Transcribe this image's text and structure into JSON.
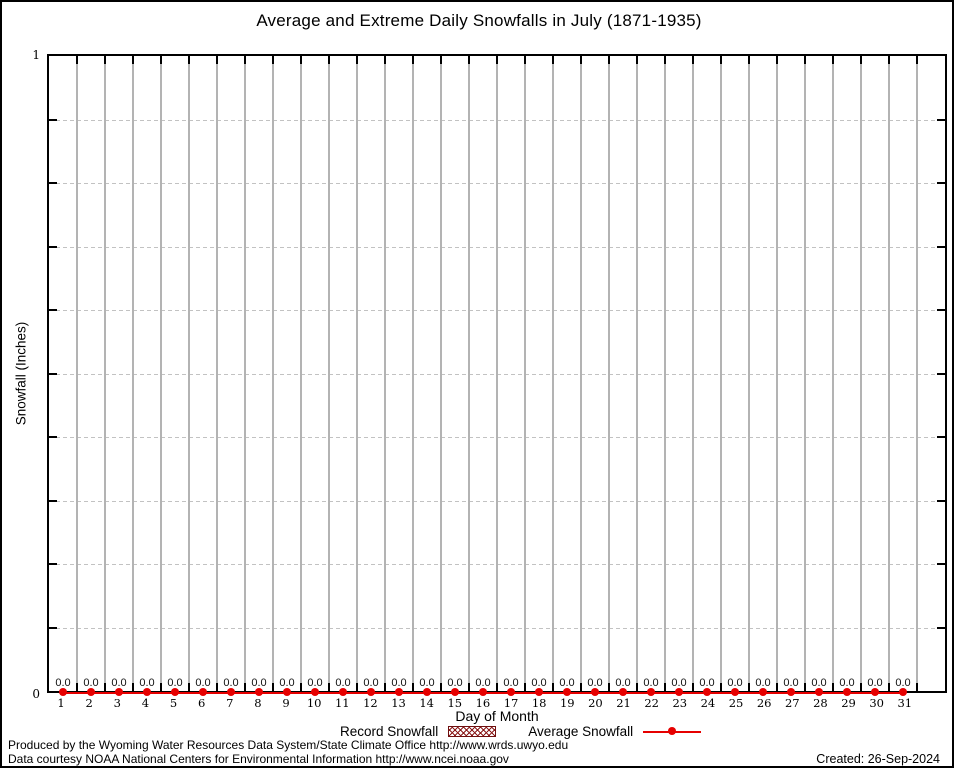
{
  "title": "Average and Extreme Daily Snowfalls in July (1871-1935)",
  "y_axis": {
    "label": "Snowfall (Inches)",
    "max_label": "1",
    "min_label": "0"
  },
  "x_axis": {
    "label": "Day of Month"
  },
  "legend": {
    "record_label": "Record Snowfall",
    "average_label": "Average Snowfall",
    "record_swatch_color": "#8b1a1a",
    "average_color": "#e60000"
  },
  "footer": {
    "line1": "Produced by the Wyoming Water Resources Data System/State Climate Office http://www.wrds.uwyo.edu",
    "line2": "Data courtesy NOAA National Centers for Environmental Information http://www.ncei.noaa.gov",
    "created": "Created: 26-Sep-2024"
  },
  "colors": {
    "series_red": "#e60000",
    "record_dark_red": "#8b1a1a",
    "vgrid_gray": "#b3b3b3",
    "hgrid_gray": "#c2c2c2",
    "border_black": "#000000"
  },
  "chart_data": {
    "type": "line",
    "title": "Average and Extreme Daily Snowfalls in July (1871-1935)",
    "xlabel": "Day of Month",
    "ylabel": "Snowfall (Inches)",
    "x": [
      1,
      2,
      3,
      4,
      5,
      6,
      7,
      8,
      9,
      10,
      11,
      12,
      13,
      14,
      15,
      16,
      17,
      18,
      19,
      20,
      21,
      22,
      23,
      24,
      25,
      26,
      27,
      28,
      29,
      30,
      31
    ],
    "series": [
      {
        "name": "Record Snowfall",
        "style": "hatched-box",
        "values": [
          0.0,
          0.0,
          0.0,
          0.0,
          0.0,
          0.0,
          0.0,
          0.0,
          0.0,
          0.0,
          0.0,
          0.0,
          0.0,
          0.0,
          0.0,
          0.0,
          0.0,
          0.0,
          0.0,
          0.0,
          0.0,
          0.0,
          0.0,
          0.0,
          0.0,
          0.0,
          0.0,
          0.0,
          0.0,
          0.0,
          0.0
        ]
      },
      {
        "name": "Average Snowfall",
        "style": "line-point",
        "values": [
          0.0,
          0.0,
          0.0,
          0.0,
          0.0,
          0.0,
          0.0,
          0.0,
          0.0,
          0.0,
          0.0,
          0.0,
          0.0,
          0.0,
          0.0,
          0.0,
          0.0,
          0.0,
          0.0,
          0.0,
          0.0,
          0.0,
          0.0,
          0.0,
          0.0,
          0.0,
          0.0,
          0.0,
          0.0,
          0.0,
          0.0
        ]
      }
    ],
    "point_labels": [
      "0.0",
      "0.0",
      "0.0",
      "0.0",
      "0.0",
      "0.0",
      "0.0",
      "0.0",
      "0.0",
      "0.0",
      "0.0",
      "0.0",
      "0.0",
      "0.0",
      "0.0",
      "0.0",
      "0.0",
      "0.0",
      "0.0",
      "0.0",
      "0.0",
      "0.0",
      "0.0",
      "0.0",
      "0.0",
      "0.0",
      "0.0",
      "0.0",
      "0.0",
      "0.0",
      "0.0"
    ],
    "xlim": [
      0.5,
      32.5
    ],
    "ylim": [
      0,
      1
    ],
    "ytick_step": 0.1,
    "ytick_labels_shown": [
      "0",
      "1"
    ],
    "grid": true,
    "legend_position": "bottom-center"
  }
}
